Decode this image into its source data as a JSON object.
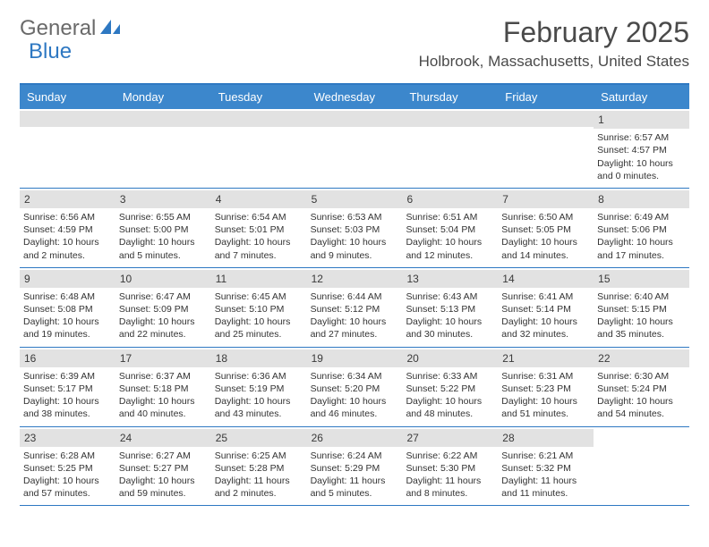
{
  "logo": {
    "text1": "General",
    "text2": "Blue"
  },
  "header": {
    "title": "February 2025",
    "location": "Holbrook, Massachusetts, United States"
  },
  "colors": {
    "header_bar": "#3c87cc",
    "border": "#2e78c2",
    "daynum_bg": "#e2e2e2",
    "logo_gray": "#6a6a6a",
    "logo_blue": "#2e78c2"
  },
  "typography": {
    "title_fontsize": 32,
    "location_fontsize": 17,
    "dow_fontsize": 13,
    "cell_fontsize": 10.5
  },
  "dow": [
    "Sunday",
    "Monday",
    "Tuesday",
    "Wednesday",
    "Thursday",
    "Friday",
    "Saturday"
  ],
  "weeks": [
    [
      {
        "empty": true
      },
      {
        "empty": true
      },
      {
        "empty": true
      },
      {
        "empty": true
      },
      {
        "empty": true
      },
      {
        "empty": true
      },
      {
        "num": "1",
        "sunrise": "Sunrise: 6:57 AM",
        "sunset": "Sunset: 4:57 PM",
        "daylight1": "Daylight: 10 hours",
        "daylight2": "and 0 minutes."
      }
    ],
    [
      {
        "num": "2",
        "sunrise": "Sunrise: 6:56 AM",
        "sunset": "Sunset: 4:59 PM",
        "daylight1": "Daylight: 10 hours",
        "daylight2": "and 2 minutes."
      },
      {
        "num": "3",
        "sunrise": "Sunrise: 6:55 AM",
        "sunset": "Sunset: 5:00 PM",
        "daylight1": "Daylight: 10 hours",
        "daylight2": "and 5 minutes."
      },
      {
        "num": "4",
        "sunrise": "Sunrise: 6:54 AM",
        "sunset": "Sunset: 5:01 PM",
        "daylight1": "Daylight: 10 hours",
        "daylight2": "and 7 minutes."
      },
      {
        "num": "5",
        "sunrise": "Sunrise: 6:53 AM",
        "sunset": "Sunset: 5:03 PM",
        "daylight1": "Daylight: 10 hours",
        "daylight2": "and 9 minutes."
      },
      {
        "num": "6",
        "sunrise": "Sunrise: 6:51 AM",
        "sunset": "Sunset: 5:04 PM",
        "daylight1": "Daylight: 10 hours",
        "daylight2": "and 12 minutes."
      },
      {
        "num": "7",
        "sunrise": "Sunrise: 6:50 AM",
        "sunset": "Sunset: 5:05 PM",
        "daylight1": "Daylight: 10 hours",
        "daylight2": "and 14 minutes."
      },
      {
        "num": "8",
        "sunrise": "Sunrise: 6:49 AM",
        "sunset": "Sunset: 5:06 PM",
        "daylight1": "Daylight: 10 hours",
        "daylight2": "and 17 minutes."
      }
    ],
    [
      {
        "num": "9",
        "sunrise": "Sunrise: 6:48 AM",
        "sunset": "Sunset: 5:08 PM",
        "daylight1": "Daylight: 10 hours",
        "daylight2": "and 19 minutes."
      },
      {
        "num": "10",
        "sunrise": "Sunrise: 6:47 AM",
        "sunset": "Sunset: 5:09 PM",
        "daylight1": "Daylight: 10 hours",
        "daylight2": "and 22 minutes."
      },
      {
        "num": "11",
        "sunrise": "Sunrise: 6:45 AM",
        "sunset": "Sunset: 5:10 PM",
        "daylight1": "Daylight: 10 hours",
        "daylight2": "and 25 minutes."
      },
      {
        "num": "12",
        "sunrise": "Sunrise: 6:44 AM",
        "sunset": "Sunset: 5:12 PM",
        "daylight1": "Daylight: 10 hours",
        "daylight2": "and 27 minutes."
      },
      {
        "num": "13",
        "sunrise": "Sunrise: 6:43 AM",
        "sunset": "Sunset: 5:13 PM",
        "daylight1": "Daylight: 10 hours",
        "daylight2": "and 30 minutes."
      },
      {
        "num": "14",
        "sunrise": "Sunrise: 6:41 AM",
        "sunset": "Sunset: 5:14 PM",
        "daylight1": "Daylight: 10 hours",
        "daylight2": "and 32 minutes."
      },
      {
        "num": "15",
        "sunrise": "Sunrise: 6:40 AM",
        "sunset": "Sunset: 5:15 PM",
        "daylight1": "Daylight: 10 hours",
        "daylight2": "and 35 minutes."
      }
    ],
    [
      {
        "num": "16",
        "sunrise": "Sunrise: 6:39 AM",
        "sunset": "Sunset: 5:17 PM",
        "daylight1": "Daylight: 10 hours",
        "daylight2": "and 38 minutes."
      },
      {
        "num": "17",
        "sunrise": "Sunrise: 6:37 AM",
        "sunset": "Sunset: 5:18 PM",
        "daylight1": "Daylight: 10 hours",
        "daylight2": "and 40 minutes."
      },
      {
        "num": "18",
        "sunrise": "Sunrise: 6:36 AM",
        "sunset": "Sunset: 5:19 PM",
        "daylight1": "Daylight: 10 hours",
        "daylight2": "and 43 minutes."
      },
      {
        "num": "19",
        "sunrise": "Sunrise: 6:34 AM",
        "sunset": "Sunset: 5:20 PM",
        "daylight1": "Daylight: 10 hours",
        "daylight2": "and 46 minutes."
      },
      {
        "num": "20",
        "sunrise": "Sunrise: 6:33 AM",
        "sunset": "Sunset: 5:22 PM",
        "daylight1": "Daylight: 10 hours",
        "daylight2": "and 48 minutes."
      },
      {
        "num": "21",
        "sunrise": "Sunrise: 6:31 AM",
        "sunset": "Sunset: 5:23 PM",
        "daylight1": "Daylight: 10 hours",
        "daylight2": "and 51 minutes."
      },
      {
        "num": "22",
        "sunrise": "Sunrise: 6:30 AM",
        "sunset": "Sunset: 5:24 PM",
        "daylight1": "Daylight: 10 hours",
        "daylight2": "and 54 minutes."
      }
    ],
    [
      {
        "num": "23",
        "sunrise": "Sunrise: 6:28 AM",
        "sunset": "Sunset: 5:25 PM",
        "daylight1": "Daylight: 10 hours",
        "daylight2": "and 57 minutes."
      },
      {
        "num": "24",
        "sunrise": "Sunrise: 6:27 AM",
        "sunset": "Sunset: 5:27 PM",
        "daylight1": "Daylight: 10 hours",
        "daylight2": "and 59 minutes."
      },
      {
        "num": "25",
        "sunrise": "Sunrise: 6:25 AM",
        "sunset": "Sunset: 5:28 PM",
        "daylight1": "Daylight: 11 hours",
        "daylight2": "and 2 minutes."
      },
      {
        "num": "26",
        "sunrise": "Sunrise: 6:24 AM",
        "sunset": "Sunset: 5:29 PM",
        "daylight1": "Daylight: 11 hours",
        "daylight2": "and 5 minutes."
      },
      {
        "num": "27",
        "sunrise": "Sunrise: 6:22 AM",
        "sunset": "Sunset: 5:30 PM",
        "daylight1": "Daylight: 11 hours",
        "daylight2": "and 8 minutes."
      },
      {
        "num": "28",
        "sunrise": "Sunrise: 6:21 AM",
        "sunset": "Sunset: 5:32 PM",
        "daylight1": "Daylight: 11 hours",
        "daylight2": "and 11 minutes."
      },
      {
        "empty": true,
        "noBar": true
      }
    ]
  ]
}
